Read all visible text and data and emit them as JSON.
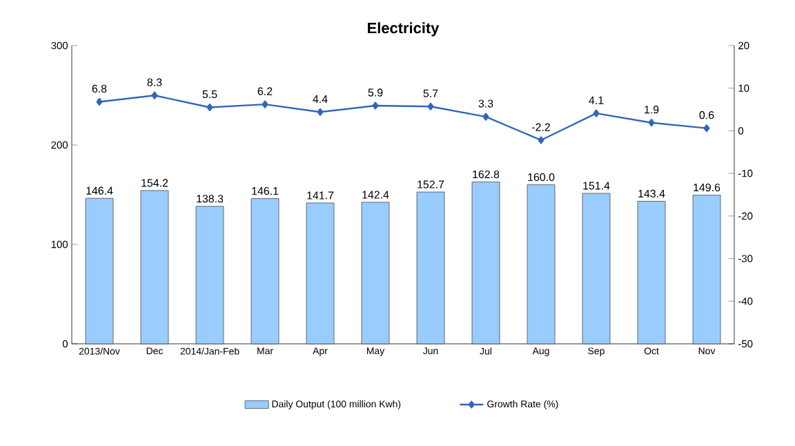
{
  "chart_data": {
    "type": "bar",
    "title": "Electricity",
    "categories": [
      "2013/Nov",
      "Dec",
      "2014/Jan-Feb",
      "Mar",
      "Apr",
      "May",
      "Jun",
      "Jul",
      "Aug",
      "Sep",
      "Oct",
      "Nov"
    ],
    "series": [
      {
        "name": "Daily Output (100 million Kwh)",
        "color": "#99ccff",
        "values": [
          146.4,
          154.2,
          138.3,
          146.1,
          141.7,
          142.4,
          152.7,
          162.8,
          160.0,
          151.4,
          143.4,
          149.6
        ],
        "value_labels": [
          "146.4",
          "154.2",
          "138.3",
          "146.1",
          "141.7",
          "142.4",
          "152.7",
          "162.8",
          "160.0",
          "151.4",
          "143.4",
          "149.6"
        ]
      },
      {
        "name": "Growth Rate (%)",
        "type": "line",
        "axis": "y2",
        "color": "#3366bb",
        "marker": "diamond",
        "values": [
          6.8,
          8.3,
          5.5,
          6.2,
          4.4,
          5.9,
          5.7,
          3.3,
          -2.2,
          4.1,
          1.9,
          0.6
        ],
        "value_labels": [
          "6.8",
          "8.3",
          "5.5",
          "6.2",
          "4.4",
          "5.9",
          "5.7",
          "3.3",
          "-2.2",
          "4.1",
          "1.9",
          "0.6"
        ]
      }
    ],
    "ylim": [
      0,
      300
    ],
    "yticks": [
      0,
      100,
      200,
      300
    ],
    "y2lim": [
      -50,
      20
    ],
    "y2ticks": [
      -50,
      -40,
      -30,
      -20,
      -10,
      0,
      10,
      20
    ],
    "legend": "bottom",
    "grid": false
  }
}
